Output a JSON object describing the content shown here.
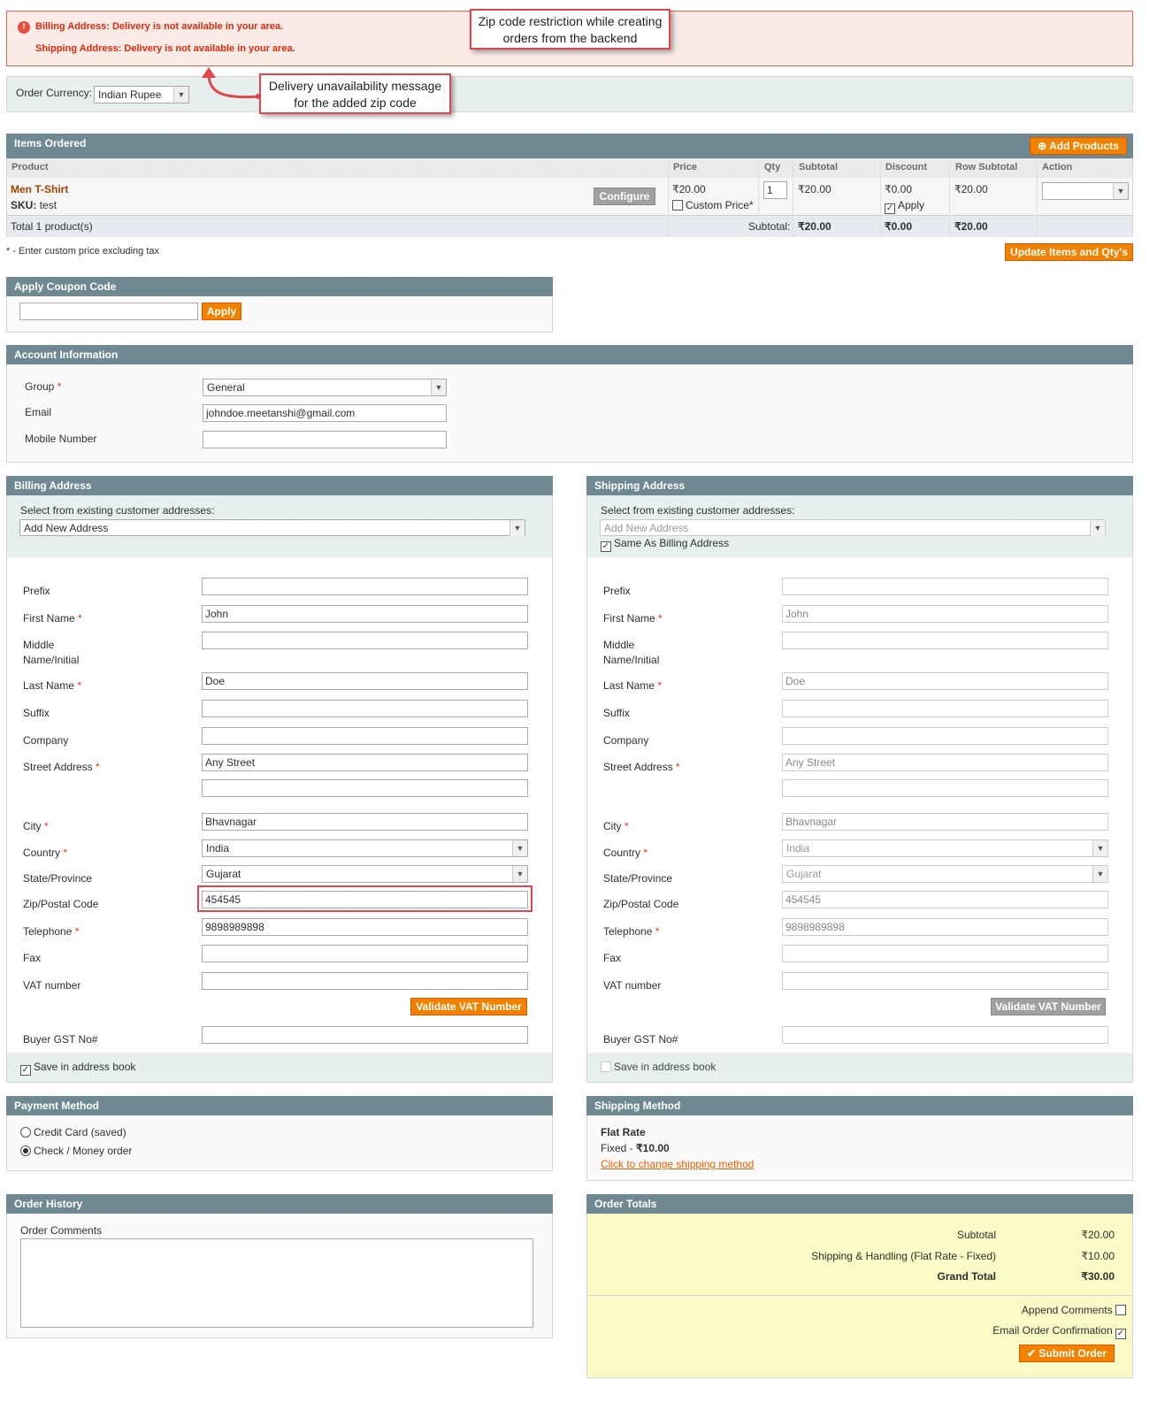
{
  "messages": {
    "billing_error": "Billing Address: Delivery is not available in your area.",
    "shipping_error": "Shipping Address: Delivery is not available in your area."
  },
  "callouts": {
    "zip_restriction": "Zip code restriction while creating orders from the backend",
    "delivery_message": "Delivery unavailability message for the added zip code"
  },
  "currency": {
    "label": "Order Currency:",
    "value": "Indian Rupee"
  },
  "items": {
    "title": "Items Ordered",
    "add_products": "Add Products",
    "columns": [
      "Product",
      "Price",
      "Qty",
      "Subtotal",
      "Discount",
      "Row Subtotal",
      "Action"
    ],
    "row": {
      "name": "Men T-Shirt",
      "sku_label": "SKU:",
      "sku": "test",
      "configure": "Configure",
      "price": "₹20.00",
      "custom_price": "Custom Price*",
      "qty": "1",
      "subtotal": "₹20.00",
      "discount": "₹0.00",
      "apply": "Apply",
      "row_subtotal": "₹20.00"
    },
    "footer": {
      "total": "Total 1 product(s)",
      "subtotal_label": "Subtotal:",
      "subtotal": "₹20.00",
      "discount": "₹0.00",
      "row_subtotal": "₹20.00"
    },
    "note": "* - Enter custom price excluding tax",
    "update": "Update Items and Qty's"
  },
  "coupon": {
    "title": "Apply Coupon Code",
    "value": "",
    "apply": "Apply"
  },
  "account": {
    "title": "Account Information",
    "group_label": "Group",
    "group": "General",
    "email_label": "Email",
    "email": "johndoe.meetanshi@gmail.com",
    "mobile_label": "Mobile Number",
    "mobile": ""
  },
  "billing": {
    "title": "Billing Address",
    "select_label": "Select from existing customer addresses:",
    "select_value": "Add New Address",
    "save_label": "Save in address book",
    "save_checked": true,
    "validate_vat": "Validate VAT Number"
  },
  "shipping": {
    "title": "Shipping Address",
    "select_label": "Select from existing customer addresses:",
    "select_value": "Add New Address",
    "same_as_billing": "Same As Billing Address",
    "save_label": "Save in address book",
    "save_checked": false,
    "validate_vat": "Validate VAT Number"
  },
  "address_fields": [
    {
      "label": "Prefix",
      "value": "",
      "req": false
    },
    {
      "label": "First Name",
      "value": "John",
      "req": true
    },
    {
      "label": "Middle Name/Initial",
      "value": "",
      "req": false
    },
    {
      "label": "Last Name",
      "value": "Doe",
      "req": true
    },
    {
      "label": "Suffix",
      "value": "",
      "req": false
    },
    {
      "label": "Company",
      "value": "",
      "req": false
    },
    {
      "label": "Street Address",
      "value": "Any Street",
      "req": true
    },
    {
      "label": "",
      "value": "",
      "req": false
    },
    {
      "label": "City",
      "value": "Bhavnagar",
      "req": true
    },
    {
      "label": "Country",
      "value": "India",
      "req": true,
      "select": true
    },
    {
      "label": "State/Province",
      "value": "Gujarat",
      "req": false,
      "select": true
    },
    {
      "label": "Zip/Postal Code",
      "value": "454545",
      "req": false
    },
    {
      "label": "Telephone",
      "value": "9898989898",
      "req": true
    },
    {
      "label": "Fax",
      "value": "",
      "req": false
    },
    {
      "label": "VAT number",
      "value": "",
      "req": false
    },
    {
      "label": "Buyer GST No#",
      "value": "",
      "req": false
    }
  ],
  "payment": {
    "title": "Payment Method",
    "options": [
      {
        "label": "Credit Card (saved)",
        "selected": false
      },
      {
        "label": "Check / Money order",
        "selected": true
      }
    ]
  },
  "shipping_method": {
    "title": "Shipping Method",
    "name": "Flat Rate",
    "detail_label": "Fixed - ",
    "price": "₹10.00",
    "change_link": "Click to change shipping method"
  },
  "history": {
    "title": "Order History",
    "comments_label": "Order Comments",
    "comments": ""
  },
  "totals": {
    "title": "Order Totals",
    "rows": [
      {
        "label": "Subtotal",
        "value": "₹20.00"
      },
      {
        "label": "Shipping & Handling (Flat Rate - Fixed)",
        "value": "₹10.00"
      },
      {
        "label": "Grand Total",
        "value": "₹30.00"
      }
    ],
    "append_comments": "Append Comments",
    "email_confirmation": "Email Order Confirmation",
    "submit": "Submit Order"
  },
  "colors": {
    "header": "#6f8992",
    "accent": "#f18200",
    "error": "#df280a",
    "callout_border": "#e0474c"
  }
}
